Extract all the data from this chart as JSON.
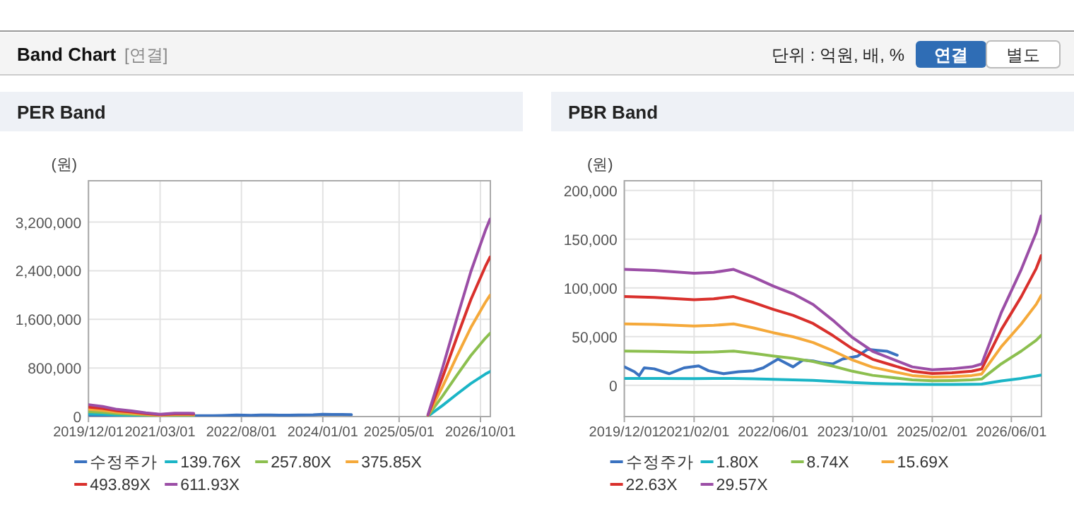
{
  "chart_data": [
    {
      "type": "other",
      "title": "Band Chart",
      "annotations": [
        "[연결]",
        "단위 : 억원, 배, %",
        "연결",
        "별도"
      ]
    },
    {
      "type": "line",
      "title": "PER Band",
      "ylabel": "(원)",
      "grid": true,
      "legend": "bottom",
      "xlim": [
        "2019-12-01",
        "2026-12-03"
      ],
      "ylim": [
        0,
        3880000
      ],
      "xticks": [
        {
          "value": "2019-12-01",
          "label": "2019/12/01"
        },
        {
          "value": "2021-03-01",
          "label": "2021/03/01"
        },
        {
          "value": "2022-08-01",
          "label": "2022/08/01"
        },
        {
          "value": "2024-01-01",
          "label": "2024/01/01"
        },
        {
          "value": "2025-05-01",
          "label": "2025/05/01"
        },
        {
          "value": "2026-10-01",
          "label": "2026/10/01"
        }
      ],
      "yticks": [
        {
          "value": 0,
          "label": "0"
        },
        {
          "value": 800000,
          "label": "800,000"
        },
        {
          "value": 1600000,
          "label": "1,600,000"
        },
        {
          "value": 2400000,
          "label": "2,400,000"
        },
        {
          "value": 3200000,
          "label": "3,200,000"
        }
      ],
      "x": [
        "2019-12",
        "2020-03",
        "2020-06",
        "2020-09",
        "2020-12",
        "2021-03",
        "2021-06",
        "2021-09",
        "2021-10",
        "2023-06",
        "2025-11",
        "2026-02",
        "2026-05",
        "2026-08",
        "2026-11",
        "2026-12"
      ],
      "series": [
        {
          "name": "수정주가",
          "color": "#3a72c0",
          "x": [
            "2019-12",
            "2020-02",
            "2020-03",
            "2020-04",
            "2020-06",
            "2020-09",
            "2020-12",
            "2021-03",
            "2021-05",
            "2021-08",
            "2021-11",
            "2022-02",
            "2022-04",
            "2022-07",
            "2022-10",
            "2022-12",
            "2023-02",
            "2023-04",
            "2023-06",
            "2023-08",
            "2023-11",
            "2024-01",
            "2024-03",
            "2024-05",
            "2024-07"
          ],
          "values": [
            19000,
            14000,
            10000,
            18000,
            17000,
            12000,
            18000,
            20000,
            15000,
            12000,
            14000,
            15000,
            18000,
            27000,
            19000,
            26000,
            25000,
            23000,
            22000,
            27000,
            30000,
            37000,
            36000,
            35000,
            31000
          ]
        },
        {
          "name": "139.76X",
          "color": "#1bb5c6",
          "values": [
            45000,
            38000,
            27000,
            21000,
            14000,
            9000,
            13000,
            13000,
            12000,
            null,
            7000,
            182000,
            363000,
            545000,
            699000,
            742000
          ]
        },
        {
          "name": "257.80X",
          "color": "#8cbf4f",
          "values": [
            82000,
            70000,
            50000,
            39000,
            26000,
            16000,
            23000,
            23000,
            22000,
            null,
            13000,
            335000,
            670000,
            1005000,
            1289000,
            1369000
          ]
        },
        {
          "name": "375.85X",
          "color": "#f5a93a",
          "values": [
            120000,
            101000,
            73000,
            56000,
            38000,
            24000,
            34000,
            34000,
            32000,
            null,
            19000,
            489000,
            977000,
            1466000,
            1879000,
            1996000
          ]
        },
        {
          "name": "493.89X",
          "color": "#d9302c",
          "values": [
            158000,
            133000,
            95000,
            74000,
            49000,
            32000,
            44000,
            44000,
            42000,
            null,
            25000,
            642000,
            1284000,
            1926000,
            2469000,
            2623000
          ]
        },
        {
          "name": "611.93X",
          "color": "#9b4ea6",
          "values": [
            196000,
            165000,
            118000,
            92000,
            61000,
            39000,
            55000,
            55000,
            52000,
            null,
            31000,
            796000,
            1591000,
            2387000,
            3060000,
            3250000
          ]
        }
      ]
    },
    {
      "type": "line",
      "title": "PBR Band",
      "ylabel": "(원)",
      "grid": true,
      "legend": "bottom",
      "xlim": [
        "2019-12-01",
        "2026-12-03"
      ],
      "ylim": [
        -32000,
        210000
      ],
      "xticks": [
        {
          "value": "2019-12-01",
          "label": "2019/12/01"
        },
        {
          "value": "2021-02-01",
          "label": "2021/02/01"
        },
        {
          "value": "2022-06-01",
          "label": "2022/06/01"
        },
        {
          "value": "2023-10-01",
          "label": "2023/10/01"
        },
        {
          "value": "2025-02-01",
          "label": "2025/02/01"
        },
        {
          "value": "2026-06-01",
          "label": "2026/06/01"
        }
      ],
      "yticks": [
        {
          "value": 0,
          "label": "0"
        },
        {
          "value": 50000,
          "label": "50,000"
        },
        {
          "value": 100000,
          "label": "100,000"
        },
        {
          "value": 150000,
          "label": "150,000"
        },
        {
          "value": 200000,
          "label": "200,000"
        }
      ],
      "x": [
        "2019-12",
        "2020-06",
        "2021-02",
        "2021-06",
        "2021-10",
        "2022-02",
        "2022-06",
        "2022-10",
        "2023-02",
        "2023-06",
        "2023-10",
        "2024-02",
        "2024-06",
        "2024-10",
        "2025-02",
        "2025-06",
        "2025-10",
        "2025-12",
        "2026-04",
        "2026-08",
        "2026-11",
        "2026-12"
      ],
      "series": [
        {
          "name": "수정주가",
          "color": "#3a72c0",
          "x": [
            "2019-12",
            "2020-02",
            "2020-03",
            "2020-04",
            "2020-06",
            "2020-09",
            "2020-12",
            "2021-03",
            "2021-05",
            "2021-08",
            "2021-11",
            "2022-02",
            "2022-04",
            "2022-07",
            "2022-10",
            "2022-12",
            "2023-02",
            "2023-04",
            "2023-06",
            "2023-08",
            "2023-11",
            "2024-01",
            "2024-03",
            "2024-05",
            "2024-07"
          ],
          "values": [
            19000,
            14000,
            10000,
            18000,
            17000,
            12000,
            18000,
            20000,
            15000,
            12000,
            14000,
            15000,
            18000,
            27000,
            19000,
            26000,
            25000,
            23000,
            22000,
            27000,
            30000,
            37000,
            36000,
            35000,
            31000
          ]
        },
        {
          "name": "1.80X",
          "color": "#1bb5c6",
          "values": [
            7200,
            7200,
            7000,
            7100,
            7200,
            6800,
            6200,
            5700,
            5100,
            4100,
            3000,
            2100,
            1600,
            1200,
            1000,
            1000,
            1200,
            1300,
            4600,
            7200,
            9600,
            10600
          ]
        },
        {
          "name": "8.74X",
          "color": "#8cbf4f",
          "values": [
            35200,
            34900,
            34000,
            34300,
            35200,
            32800,
            30100,
            27800,
            24500,
            19800,
            14500,
            10300,
            8000,
            5600,
            4700,
            5000,
            5600,
            6500,
            22200,
            35200,
            46400,
            51400
          ]
        },
        {
          "name": "15.69X",
          "color": "#f5a93a",
          "values": [
            63100,
            62600,
            61000,
            61600,
            63100,
            58900,
            54100,
            49900,
            44000,
            35600,
            26000,
            18600,
            14300,
            10100,
            8500,
            9000,
            10100,
            11700,
            39800,
            63100,
            83300,
            92300
          ]
        },
        {
          "name": "22.63X",
          "color": "#d9302c",
          "values": [
            91100,
            90300,
            88000,
            88800,
            91100,
            85000,
            78100,
            71900,
            63500,
            51300,
            37500,
            26800,
            20700,
            14600,
            12200,
            13000,
            14600,
            16800,
            57400,
            91100,
            120100,
            133200
          ]
        },
        {
          "name": "29.57X",
          "color": "#9b4ea6",
          "values": [
            119000,
            118000,
            115000,
            116000,
            119000,
            111000,
            102000,
            94000,
            83000,
            67000,
            49000,
            35000,
            27000,
            19000,
            16000,
            17000,
            19000,
            22000,
            75000,
            119000,
            157000,
            174000
          ]
        }
      ]
    }
  ]
}
